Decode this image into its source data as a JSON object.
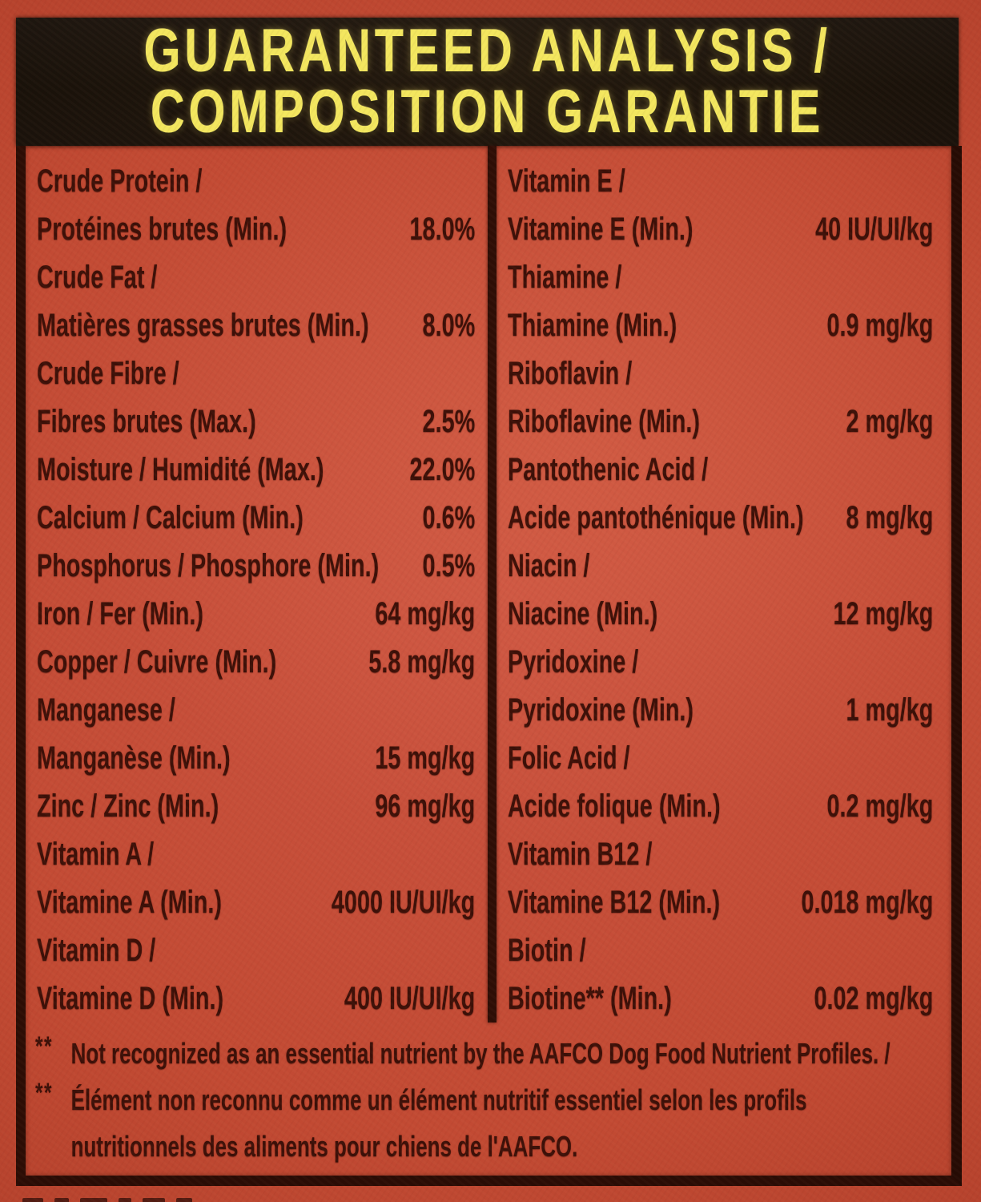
{
  "header": {
    "line1": "GUARANTEED ANALYSIS /",
    "line2": "COMPOSITION GARANTIE"
  },
  "nutrients": {
    "left": [
      {
        "label_lines": [
          "Crude Protein /",
          "Protéines brutes (Min.)"
        ],
        "value": "18.0%"
      },
      {
        "label_lines": [
          "Crude Fat /",
          "Matières grasses brutes (Min.)"
        ],
        "value": "8.0%"
      },
      {
        "label_lines": [
          "Crude Fibre /",
          "Fibres brutes (Max.)"
        ],
        "value": "2.5%"
      },
      {
        "label_lines": [
          "Moisture / Humidité (Max.)"
        ],
        "value": "22.0%"
      },
      {
        "label_lines": [
          "Calcium / Calcium (Min.)"
        ],
        "value": "0.6%"
      },
      {
        "label_lines": [
          "Phosphorus / Phosphore (Min.)"
        ],
        "value": "0.5%"
      },
      {
        "label_lines": [
          "Iron / Fer (Min.)"
        ],
        "value": "64 mg/kg"
      },
      {
        "label_lines": [
          "Copper / Cuivre (Min.)"
        ],
        "value": "5.8 mg/kg"
      },
      {
        "label_lines": [
          "Manganese /",
          "Manganèse (Min.)"
        ],
        "value": "15 mg/kg"
      },
      {
        "label_lines": [
          "Zinc / Zinc (Min.)"
        ],
        "value": "96 mg/kg"
      },
      {
        "label_lines": [
          "Vitamin A /",
          "Vitamine A (Min.)"
        ],
        "value": "4000 IU/UI/kg"
      },
      {
        "label_lines": [
          "Vitamin D /",
          "Vitamine D (Min.)"
        ],
        "value": "400 IU/UI/kg"
      }
    ],
    "right": [
      {
        "label_lines": [
          "Vitamin E /",
          "Vitamine E (Min.)"
        ],
        "value": "40 IU/UI/kg"
      },
      {
        "label_lines": [
          "Thiamine /",
          "Thiamine (Min.)"
        ],
        "value": "0.9 mg/kg"
      },
      {
        "label_lines": [
          "Riboflavin /",
          "Riboflavine (Min.)"
        ],
        "value": "2 mg/kg"
      },
      {
        "label_lines": [
          "Pantothenic Acid /",
          "Acide pantothénique (Min.)"
        ],
        "value": "8 mg/kg"
      },
      {
        "label_lines": [
          "Niacin /",
          "Niacine (Min.)"
        ],
        "value": "12 mg/kg"
      },
      {
        "label_lines": [
          "Pyridoxine /",
          "Pyridoxine (Min.)"
        ],
        "value": "1 mg/kg"
      },
      {
        "label_lines": [
          "Folic Acid /",
          "Acide folique (Min.)"
        ],
        "value": "0.2 mg/kg"
      },
      {
        "label_lines": [
          "Vitamin B12 /",
          "Vitamine B12 (Min.)"
        ],
        "value": "0.018 mg/kg"
      },
      {
        "label_lines": [
          "Biotin /",
          "Biotine** (Min.)"
        ],
        "value": "0.02 mg/kg"
      }
    ]
  },
  "footnotes": [
    {
      "marker": "**",
      "lines": [
        "Not recognized as an essential nutrient by the AAFCO Dog Food Nutrient Profiles. /"
      ]
    },
    {
      "marker": "**",
      "lines": [
        "Élément non reconnu comme un élément nutritif essentiel selon les profils",
        "nutritionnels des aliments pour chiens de l'AAFCO."
      ]
    }
  ],
  "colors": {
    "background_red": "#c24a33",
    "ink": "#3c1008",
    "band_black": "#171009",
    "title_yellow": "#f3e75f"
  }
}
